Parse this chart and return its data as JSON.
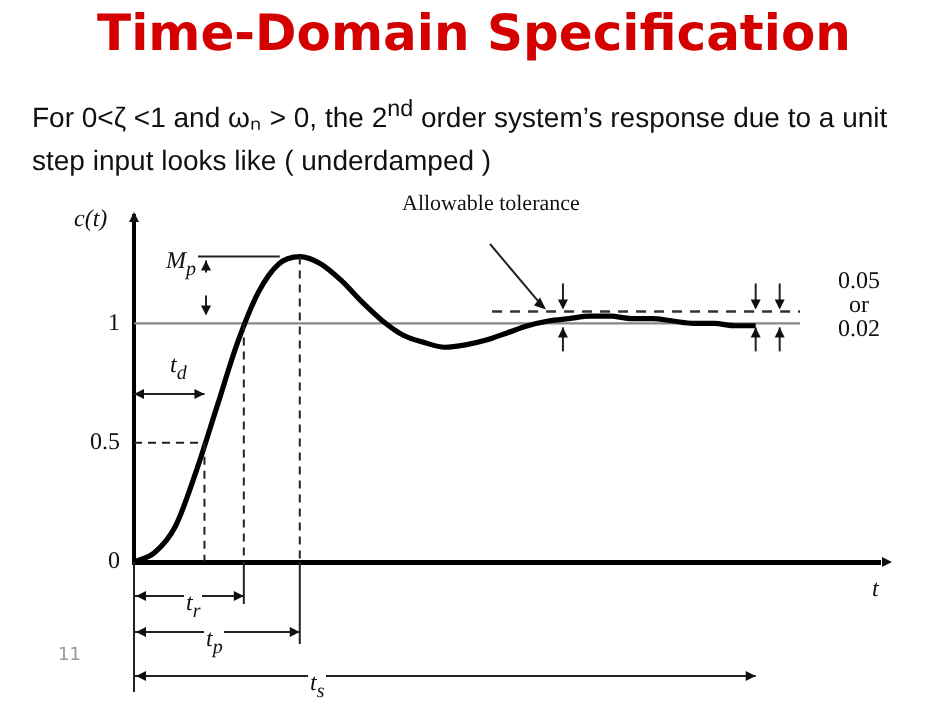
{
  "chart_data": {
    "type": "line",
    "title": "Time-Domain Specification",
    "subtitle": "For 0<ζ <1 and ωₙ > 0, the 2$^{nd}$ order system’s response due to a unit step input looks like ( underdamped )",
    "xlabel": "t",
    "ylabel": "c(t)",
    "categories": [
      null,
      null,
      null,
      null,
      null,
      null,
      null,
      null,
      null,
      null,
      null,
      null,
      null,
      null,
      null,
      null,
      null,
      null,
      null,
      null,
      null,
      null,
      null,
      null,
      null,
      null,
      null,
      null,
      null,
      null,
      null,
      null,
      null,
      null,
      null,
      null,
      null
    ],
    "series": [
      {
        "color": "#000000",
        "values": [
          0,
          0.04,
          0.15,
          0.38,
          0.65,
          0.92,
          1.13,
          1.25,
          1.28,
          1.25,
          1.18,
          1.09,
          1.01,
          0.95,
          0.92,
          0.9,
          0.91,
          0.93,
          0.96,
          0.99,
          1.01,
          1.02,
          1.03,
          1.03,
          1.02,
          1.02,
          1.01,
          1.0,
          1.0,
          0.99,
          0.99,
          null,
          null,
          null,
          null,
          null,
          null
        ]
      }
    ],
    "ylim": [
      0,
      1.45
    ],
    "yticks": [
      0,
      0.5,
      1
    ],
    "grid": false,
    "tick_labels": "y",
    "marker": "none",
    "line_style": "solid",
    "ref_lines": [
      {
        "axis": "y",
        "value": 1,
        "color": "#888888",
        "line_style": "solid"
      },
      {
        "axis": "y",
        "value": 1.05,
        "color": "#333333",
        "line_style": "dashed"
      }
    ],
    "annotations": [
      "Allowable tolerance",
      "M$_{p}$",
      "t$_{d}$",
      "t$_{r}$",
      "t$_{p}$",
      "t$_{s}$",
      "0.05 or 0.02",
      "11"
    ]
  }
}
